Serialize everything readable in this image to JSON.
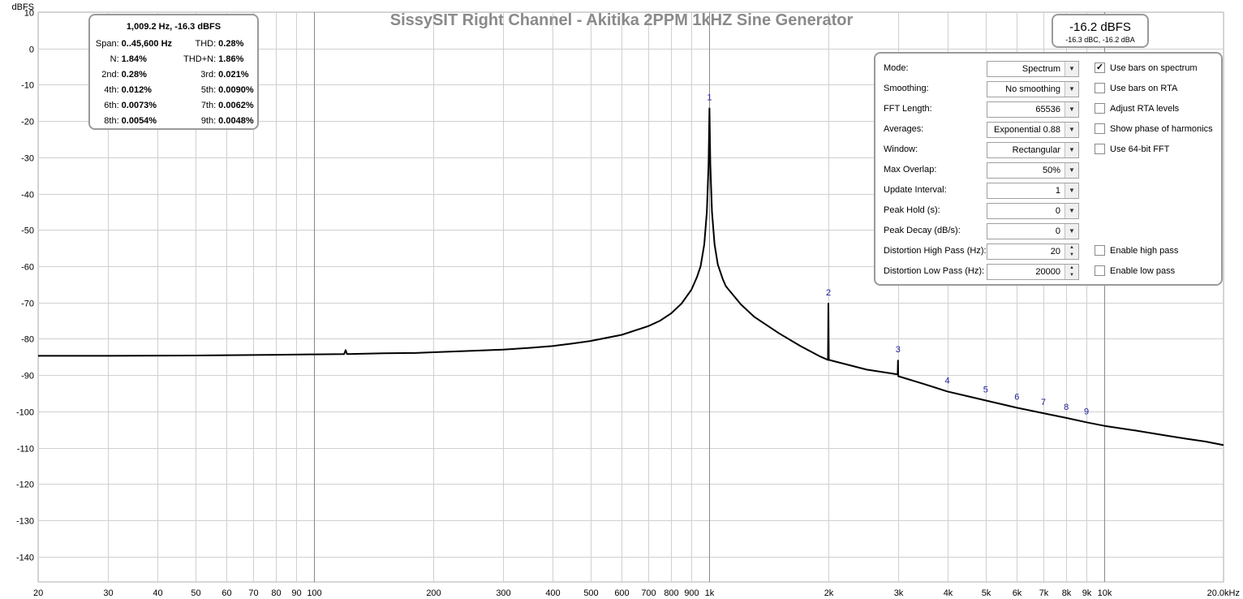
{
  "chart_data": {
    "type": "line",
    "title": "SissySIT Right Channel - Akitika 2PPM 1kHZ Sine Generator",
    "ylabel": "dBFS",
    "xscale": "log",
    "xlim": [
      20,
      20000
    ],
    "ylim": [
      -147,
      10
    ],
    "grid": true,
    "y_ticks": [
      "10",
      "0",
      "-10",
      "-20",
      "-30",
      "-40",
      "-50",
      "-60",
      "-70",
      "-80",
      "-90",
      "-100",
      "-110",
      "-120",
      "-130",
      "-140"
    ],
    "x_ticks": [
      {
        "v": 20,
        "label": "20"
      },
      {
        "v": 30,
        "label": "30"
      },
      {
        "v": 40,
        "label": "40"
      },
      {
        "v": 50,
        "label": "50"
      },
      {
        "v": 60,
        "label": "60"
      },
      {
        "v": 70,
        "label": "70"
      },
      {
        "v": 80,
        "label": "80"
      },
      {
        "v": 90,
        "label": "90"
      },
      {
        "v": 100,
        "label": "100"
      },
      {
        "v": 200,
        "label": "200"
      },
      {
        "v": 300,
        "label": "300"
      },
      {
        "v": 400,
        "label": "400"
      },
      {
        "v": 500,
        "label": "500"
      },
      {
        "v": 600,
        "label": "600"
      },
      {
        "v": 700,
        "label": "700"
      },
      {
        "v": 800,
        "label": "800"
      },
      {
        "v": 900,
        "label": "900"
      },
      {
        "v": 1000,
        "label": "1k"
      },
      {
        "v": 2000,
        "label": "2k"
      },
      {
        "v": 3000,
        "label": "3k"
      },
      {
        "v": 4000,
        "label": "4k"
      },
      {
        "v": 5000,
        "label": "5k"
      },
      {
        "v": 6000,
        "label": "6k"
      },
      {
        "v": 7000,
        "label": "7k"
      },
      {
        "v": 8000,
        "label": "8k"
      },
      {
        "v": 9000,
        "label": "9k"
      },
      {
        "v": 10000,
        "label": "10k"
      },
      {
        "v": 20000,
        "label": "20.0kHz"
      }
    ],
    "series": [
      {
        "points": [
          [
            20,
            -84.7
          ],
          [
            30,
            -84.7
          ],
          [
            50,
            -84.6
          ],
          [
            80,
            -84.4
          ],
          [
            100,
            -84.3
          ],
          [
            119,
            -84.2
          ],
          [
            120,
            -83.1
          ],
          [
            121,
            -84.2
          ],
          [
            150,
            -84.0
          ],
          [
            180,
            -83.9
          ],
          [
            200,
            -83.7
          ],
          [
            238,
            -83.4
          ],
          [
            300,
            -83.0
          ],
          [
            350,
            -82.5
          ],
          [
            400,
            -82.0
          ],
          [
            450,
            -81.3
          ],
          [
            500,
            -80.6
          ],
          [
            600,
            -78.9
          ],
          [
            700,
            -76.5
          ],
          [
            750,
            -75.0
          ],
          [
            800,
            -73.0
          ],
          [
            850,
            -70.3
          ],
          [
            900,
            -66.5
          ],
          [
            930,
            -63.0
          ],
          [
            950,
            -60.0
          ],
          [
            970,
            -54.0
          ],
          [
            985,
            -45.0
          ],
          [
            995,
            -32.0
          ],
          [
            1000,
            -16.5
          ],
          [
            1005,
            -32.0
          ],
          [
            1015,
            -45.0
          ],
          [
            1030,
            -54.0
          ],
          [
            1050,
            -59.5
          ],
          [
            1080,
            -63.5
          ],
          [
            1100,
            -65.5
          ],
          [
            1200,
            -70.5
          ],
          [
            1300,
            -74.0
          ],
          [
            1500,
            -78.5
          ],
          [
            1700,
            -82.0
          ],
          [
            1900,
            -84.8
          ],
          [
            1995,
            -85.8
          ],
          [
            2000,
            -70.3
          ],
          [
            2005,
            -85.8
          ],
          [
            2500,
            -88.5
          ],
          [
            2995,
            -89.8
          ],
          [
            3000,
            -86.0
          ],
          [
            3005,
            -90.3
          ],
          [
            3500,
            -92.5
          ],
          [
            4000,
            -94.5
          ],
          [
            4500,
            -95.8
          ],
          [
            5000,
            -97.0
          ],
          [
            6000,
            -99.0
          ],
          [
            7000,
            -100.5
          ],
          [
            8000,
            -101.8
          ],
          [
            9000,
            -103.0
          ],
          [
            10000,
            -104.0
          ],
          [
            12000,
            -105.3
          ],
          [
            14000,
            -106.5
          ],
          [
            16000,
            -107.5
          ],
          [
            18000,
            -108.3
          ],
          [
            20000,
            -109.3
          ]
        ]
      }
    ],
    "harmonic_markers": [
      {
        "label": "1",
        "f": 1000,
        "db": -16.5
      },
      {
        "label": "2",
        "f": 2000,
        "db": -70.3
      },
      {
        "label": "3",
        "f": 3000,
        "db": -86.0
      },
      {
        "label": "4",
        "f": 4000,
        "db": -94.5
      },
      {
        "label": "5",
        "f": 5000,
        "db": -97.0
      },
      {
        "label": "6",
        "f": 6000,
        "db": -99.0
      },
      {
        "label": "7",
        "f": 7000,
        "db": -100.5
      },
      {
        "label": "8",
        "f": 8000,
        "db": -101.8
      },
      {
        "label": "9",
        "f": 9000,
        "db": -103.0
      }
    ]
  },
  "stats": {
    "header": "1,009.2 Hz, -16.3 dBFS",
    "rows": [
      {
        "l1": "Span:",
        "v1": "0..45,600 Hz",
        "l2": "THD:",
        "v2": "0.28%"
      },
      {
        "l1": "N:",
        "v1": "1.84%",
        "l2": "THD+N:",
        "v2": "1.86%"
      },
      {
        "l1": "2nd:",
        "v1": "0.28%",
        "l2": "3rd:",
        "v2": "0.021%"
      },
      {
        "l1": "4th:",
        "v1": "0.012%",
        "l2": "5th:",
        "v2": "0.0090%"
      },
      {
        "l1": "6th:",
        "v1": "0.0073%",
        "l2": "7th:",
        "v2": "0.0062%"
      },
      {
        "l1": "8th:",
        "v1": "0.0054%",
        "l2": "9th:",
        "v2": "0.0048%"
      }
    ]
  },
  "level": {
    "main": "-16.2 dBFS",
    "sub": "-16.3 dBC, -16.2 dBA"
  },
  "controls": {
    "fields": [
      {
        "label": "Mode:",
        "value": "Spectrum",
        "kind": "combo"
      },
      {
        "label": "Smoothing:",
        "value": "No  smoothing",
        "kind": "combo"
      },
      {
        "label": "FFT Length:",
        "value": "65536",
        "kind": "combo"
      },
      {
        "label": "Averages:",
        "value": "Exponential 0.88",
        "kind": "combo"
      },
      {
        "label": "Window:",
        "value": "Rectangular",
        "kind": "combo"
      },
      {
        "label": "Max Overlap:",
        "value": "50%",
        "kind": "combo"
      },
      {
        "label": "Update Interval:",
        "value": "1",
        "kind": "combo"
      },
      {
        "label": "Peak Hold (s):",
        "value": "0",
        "kind": "combo"
      },
      {
        "label": "Peak Decay (dB/s):",
        "value": "0",
        "kind": "combo"
      },
      {
        "label": "Distortion High Pass (Hz):",
        "value": "20",
        "kind": "spin"
      },
      {
        "label": "Distortion Low Pass (Hz):",
        "value": "20000",
        "kind": "spin"
      }
    ],
    "checks": [
      {
        "label": "Use bars on spectrum",
        "checked": true,
        "row": 0
      },
      {
        "label": "Use bars on RTA",
        "checked": false,
        "row": 1
      },
      {
        "label": "Adjust RTA levels",
        "checked": false,
        "row": 2
      },
      {
        "label": "Show phase of harmonics",
        "checked": false,
        "row": 3
      },
      {
        "label": "Use 64-bit FFT",
        "checked": false,
        "row": 4
      },
      {
        "label": "Enable high pass",
        "checked": false,
        "row": 9
      },
      {
        "label": "Enable low pass",
        "checked": false,
        "row": 10
      }
    ]
  }
}
